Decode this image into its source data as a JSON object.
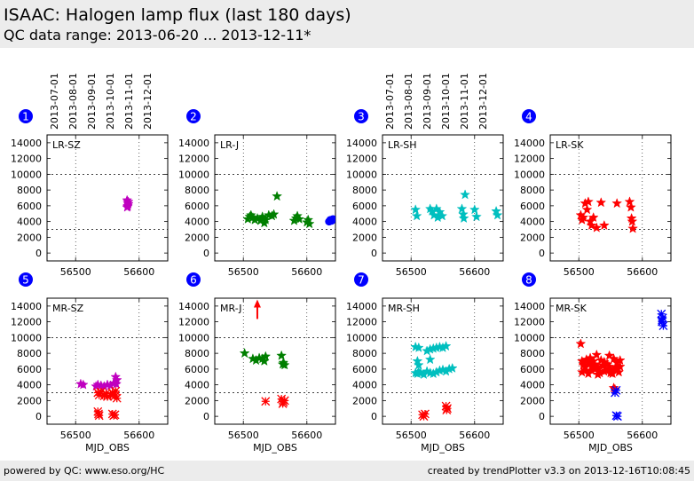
{
  "header": {
    "title": "ISAAC: Halogen lamp flux (last 180 days)",
    "subtitle": "QC data range: 2013-06-20 ... 2013-12-11*"
  },
  "footer": {
    "left": "powered by QC: www.eso.org/HC",
    "right": "created by trendPlotter v3.3 on 2013-12-16T10:08:45"
  },
  "colors": {
    "magenta": "#bf00bf",
    "green": "#007f00",
    "cyan": "#00bfbf",
    "red": "#ff0000",
    "blue": "#0000ff",
    "badge": "#0000ff"
  },
  "chart_data": [
    {
      "panel": "1",
      "label": "LR-SZ",
      "type": "scatter",
      "xlabel": "",
      "xlim": [
        56455,
        56645
      ],
      "ylim": [
        -1000,
        15000
      ],
      "xticks": [
        56500,
        56600
      ],
      "yticks": [
        0,
        2000,
        4000,
        6000,
        8000,
        10000,
        12000,
        14000
      ],
      "hlines": [
        3000,
        10000
      ],
      "top_dates": [
        "2013-07-01",
        "2013-08-01",
        "2013-09-01",
        "2013-10-01",
        "2013-11-01",
        "2013-12-01"
      ],
      "series": [
        {
          "color": "magenta",
          "marker": "star",
          "x": [
            56581,
            56582,
            56583,
            56582,
            56581,
            56583,
            56582
          ],
          "y": [
            6700,
            6400,
            6200,
            6000,
            5800,
            6500,
            5900
          ]
        }
      ]
    },
    {
      "panel": "2",
      "label": "LR-J",
      "type": "scatter",
      "xlabel": "",
      "xlim": [
        56455,
        56645
      ],
      "ylim": [
        -1000,
        15000
      ],
      "xticks": [
        56500,
        56600
      ],
      "yticks": [
        0,
        2000,
        4000,
        6000,
        8000,
        10000,
        12000,
        14000
      ],
      "hlines": [
        3000,
        10000
      ],
      "series": [
        {
          "color": "green",
          "marker": "star",
          "x": [
            56507,
            56510,
            56512,
            56515,
            56518,
            56522,
            56527,
            56530,
            56533,
            56535,
            56540,
            56545,
            56548,
            56553,
            56580,
            56583,
            56585,
            56588,
            56600,
            56602,
            56604
          ],
          "y": [
            4300,
            4600,
            4800,
            4500,
            4200,
            4400,
            4100,
            4600,
            3800,
            4200,
            4800,
            4700,
            4900,
            7200,
            4100,
            4400,
            4700,
            4300,
            3900,
            4200,
            3700
          ]
        },
        {
          "color": "blue",
          "marker": "circle",
          "x": [
            56635,
            56637,
            56639,
            56641
          ],
          "y": [
            4000,
            4200,
            4100,
            4300
          ]
        }
      ]
    },
    {
      "panel": "3",
      "label": "LR-SH",
      "type": "scatter",
      "xlabel": "",
      "xlim": [
        56455,
        56645
      ],
      "ylim": [
        -1000,
        15000
      ],
      "xticks": [
        56500,
        56600
      ],
      "yticks": [
        0,
        2000,
        4000,
        6000,
        8000,
        10000,
        12000,
        14000
      ],
      "hlines": [
        3000,
        10000
      ],
      "top_dates": [
        "2013-07-01",
        "2013-08-01",
        "2013-09-01",
        "2013-10-01",
        "2013-11-01",
        "2013-12-01"
      ],
      "series": [
        {
          "color": "cyan",
          "marker": "star",
          "x": [
            56507,
            56509,
            56530,
            56533,
            56536,
            56540,
            56542,
            56545,
            56549,
            56580,
            56583,
            56585,
            56582,
            56600,
            56603,
            56634,
            56636
          ],
          "y": [
            5500,
            4700,
            5600,
            5300,
            4800,
            5600,
            4500,
            5200,
            4700,
            5600,
            4400,
            7400,
            4900,
            5500,
            4600,
            5300,
            4800
          ]
        }
      ]
    },
    {
      "panel": "4",
      "label": "LR-SK",
      "type": "scatter",
      "xlabel": "",
      "xlim": [
        56455,
        56645
      ],
      "ylim": [
        -1000,
        15000
      ],
      "xticks": [
        56500,
        56600
      ],
      "yticks": [
        0,
        2000,
        4000,
        6000,
        8000,
        10000,
        12000,
        14000
      ],
      "hlines": [
        3000,
        10000
      ],
      "series": [
        {
          "color": "red",
          "marker": "star",
          "x": [
            56503,
            56505,
            56507,
            56510,
            56513,
            56515,
            56518,
            56520,
            56523,
            56528,
            56535,
            56540,
            56560,
            56580,
            56582,
            56583,
            56584,
            56585
          ],
          "y": [
            4800,
            4200,
            4500,
            6300,
            5500,
            6500,
            4000,
            3500,
            4500,
            3200,
            6400,
            3500,
            6300,
            6500,
            5800,
            4400,
            4000,
            3100
          ]
        }
      ]
    },
    {
      "panel": "5",
      "label": "MR-SZ",
      "type": "scatter",
      "xlabel": "MJD_OBS",
      "xlim": [
        56455,
        56645
      ],
      "ylim": [
        -1000,
        15000
      ],
      "xticks": [
        56500,
        56600
      ],
      "yticks": [
        0,
        2000,
        4000,
        6000,
        8000,
        10000,
        12000,
        14000
      ],
      "hlines": [
        3000,
        10000
      ],
      "series": [
        {
          "color": "magenta",
          "marker": "star",
          "x": [
            56508,
            56512,
            56532,
            56535,
            56540,
            56545,
            56550,
            56555,
            56560,
            56563,
            56565,
            56564
          ],
          "y": [
            4100,
            4000,
            3800,
            4000,
            3900,
            3800,
            4000,
            3900,
            4200,
            5000,
            4600,
            4100
          ]
        },
        {
          "color": "red",
          "marker": "x",
          "x": [
            56535,
            56537,
            56540,
            56545,
            56548,
            56550,
            56555,
            56558,
            56560,
            56562,
            56563,
            56565,
            56535,
            56536,
            56537,
            56558,
            56560,
            56562
          ],
          "y": [
            3000,
            2700,
            3100,
            2600,
            2900,
            2500,
            2700,
            3000,
            2800,
            2600,
            3200,
            2300,
            600,
            300,
            100,
            300,
            100,
            200
          ]
        }
      ]
    },
    {
      "panel": "6",
      "label": "MR-J",
      "type": "scatter",
      "xlabel": "MJD_OBS",
      "xlim": [
        56455,
        56645
      ],
      "ylim": [
        -1000,
        15000
      ],
      "xticks": [
        56500,
        56600
      ],
      "yticks": [
        0,
        2000,
        4000,
        6000,
        8000,
        10000,
        12000,
        14000
      ],
      "hlines": [
        3000,
        10000
      ],
      "series": [
        {
          "color": "green",
          "marker": "star",
          "x": [
            56502,
            56515,
            56520,
            56525,
            56530,
            56533,
            56535,
            56560,
            56563,
            56565,
            56562
          ],
          "y": [
            8000,
            7300,
            7100,
            7400,
            7300,
            7000,
            7600,
            7700,
            6800,
            6500,
            6600
          ]
        },
        {
          "color": "red",
          "marker": "x",
          "x": [
            56535,
            56560,
            56563,
            56565,
            56562
          ],
          "y": [
            1900,
            2200,
            1800,
            2000,
            1600
          ]
        },
        {
          "color": "red",
          "marker": "arrow-up",
          "x": [
            56522
          ],
          "y": [
            14500
          ]
        }
      ]
    },
    {
      "panel": "7",
      "label": "MR-SH",
      "type": "scatter",
      "xlabel": "MJD_OBS",
      "xlim": [
        56455,
        56645
      ],
      "ylim": [
        -1000,
        15000
      ],
      "xticks": [
        56500,
        56600
      ],
      "yticks": [
        0,
        2000,
        4000,
        6000,
        8000,
        10000,
        12000,
        14000
      ],
      "hlines": [
        3000,
        10000
      ],
      "series": [
        {
          "color": "cyan",
          "marker": "star",
          "x": [
            56507,
            56510,
            56512,
            56515,
            56520,
            56525,
            56530,
            56535,
            56540,
            56545,
            56550,
            56555,
            56560,
            56565,
            56507,
            56512,
            56525,
            56530,
            56535,
            56540,
            56545,
            56550,
            56555,
            56510,
            56530,
            56512
          ],
          "y": [
            5500,
            5400,
            5600,
            5500,
            5300,
            5700,
            5500,
            5400,
            5600,
            5800,
            5900,
            5700,
            6000,
            6100,
            8800,
            8700,
            8300,
            8500,
            8600,
            8700,
            8800,
            8700,
            8900,
            7000,
            7200,
            6500
          ]
        },
        {
          "color": "red",
          "marker": "x",
          "x": [
            56518,
            56520,
            56522,
            56555,
            56557,
            56556
          ],
          "y": [
            200,
            0,
            300,
            1300,
            1000,
            800
          ]
        }
      ]
    },
    {
      "panel": "8",
      "label": "MR-SK",
      "type": "scatter",
      "xlabel": "MJD_OBS",
      "xlim": [
        56455,
        56645
      ],
      "ylim": [
        -1000,
        15000
      ],
      "xticks": [
        56500,
        56600
      ],
      "yticks": [
        0,
        2000,
        4000,
        6000,
        8000,
        10000,
        12000,
        14000
      ],
      "hlines": [
        3000,
        10000
      ],
      "series": [
        {
          "color": "red",
          "marker": "star",
          "x": [
            56503,
            56505,
            56507,
            56510,
            56512,
            56515,
            56518,
            56520,
            56523,
            56525,
            56528,
            56530,
            56533,
            56535,
            56538,
            56540,
            56543,
            56545,
            56548,
            56550,
            56553,
            56555,
            56558,
            56560,
            56563,
            56565,
            56505,
            56510,
            56515,
            56520,
            56525,
            56530,
            56540,
            56550,
            56560,
            56565,
            56508,
            56518,
            56528,
            56538,
            56548,
            56558,
            56555,
            56557
          ],
          "y": [
            9200,
            7000,
            6500,
            5800,
            7200,
            6800,
            7400,
            6300,
            7000,
            6600,
            7800,
            6200,
            5500,
            7100,
            6400,
            6900,
            5800,
            6600,
            7700,
            6000,
            5400,
            7300,
            6200,
            6800,
            5600,
            7100,
            5600,
            6200,
            5400,
            5800,
            6000,
            5300,
            5700,
            5500,
            5900,
            6300,
            6800,
            6900,
            6100,
            6500,
            6300,
            5900,
            3600,
            3400
          ]
        },
        {
          "color": "blue",
          "marker": "x",
          "x": [
            56557,
            56559,
            56630,
            56632,
            56631,
            56633,
            56631,
            56559,
            56561
          ],
          "y": [
            3000,
            3300,
            13000,
            12500,
            12000,
            11500,
            12200,
            100,
            0
          ]
        }
      ]
    }
  ]
}
